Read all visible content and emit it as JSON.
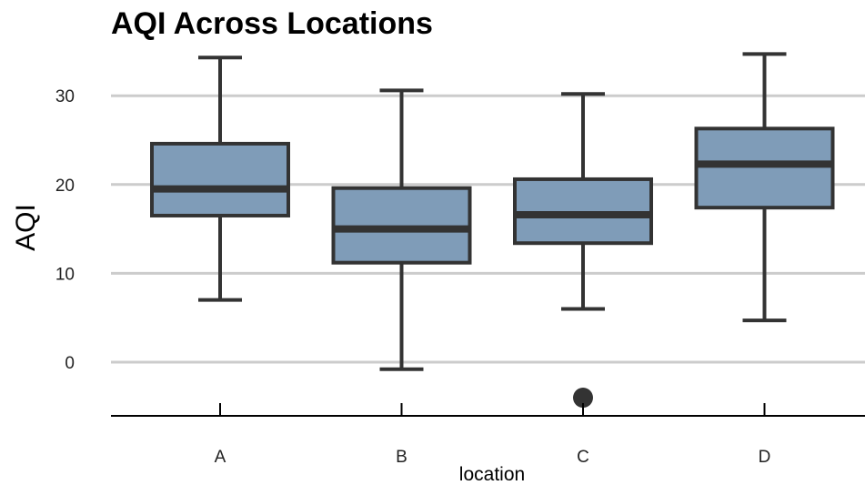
{
  "chart_data": {
    "type": "boxplot",
    "title": "AQI Across Locations",
    "xlabel": "location",
    "ylabel": "AQI",
    "categories": [
      "A",
      "B",
      "C",
      "D"
    ],
    "boxes": [
      {
        "category": "A",
        "whisker_low": 7.0,
        "q1": 16.5,
        "median": 19.5,
        "q3": 24.6,
        "whisker_high": 34.3,
        "outliers": []
      },
      {
        "category": "B",
        "whisker_low": -0.8,
        "q1": 11.2,
        "median": 15.0,
        "q3": 19.6,
        "whisker_high": 30.6,
        "outliers": []
      },
      {
        "category": "C",
        "whisker_low": 6.0,
        "q1": 13.4,
        "median": 16.6,
        "q3": 20.6,
        "whisker_high": 30.2,
        "outliers": [
          -4.0
        ]
      },
      {
        "category": "D",
        "whisker_low": 4.7,
        "q1": 17.4,
        "median": 22.3,
        "q3": 26.3,
        "whisker_high": 34.7,
        "outliers": []
      }
    ],
    "yticks": [
      0,
      10,
      20,
      30
    ],
    "ylim": [
      -6,
      36
    ],
    "grid": "horizontal",
    "legend": "none",
    "colors": {
      "box_fill": "#7f9cb8",
      "box_stroke": "#333333",
      "grid": "#cccccc",
      "axis": "#000000"
    }
  }
}
